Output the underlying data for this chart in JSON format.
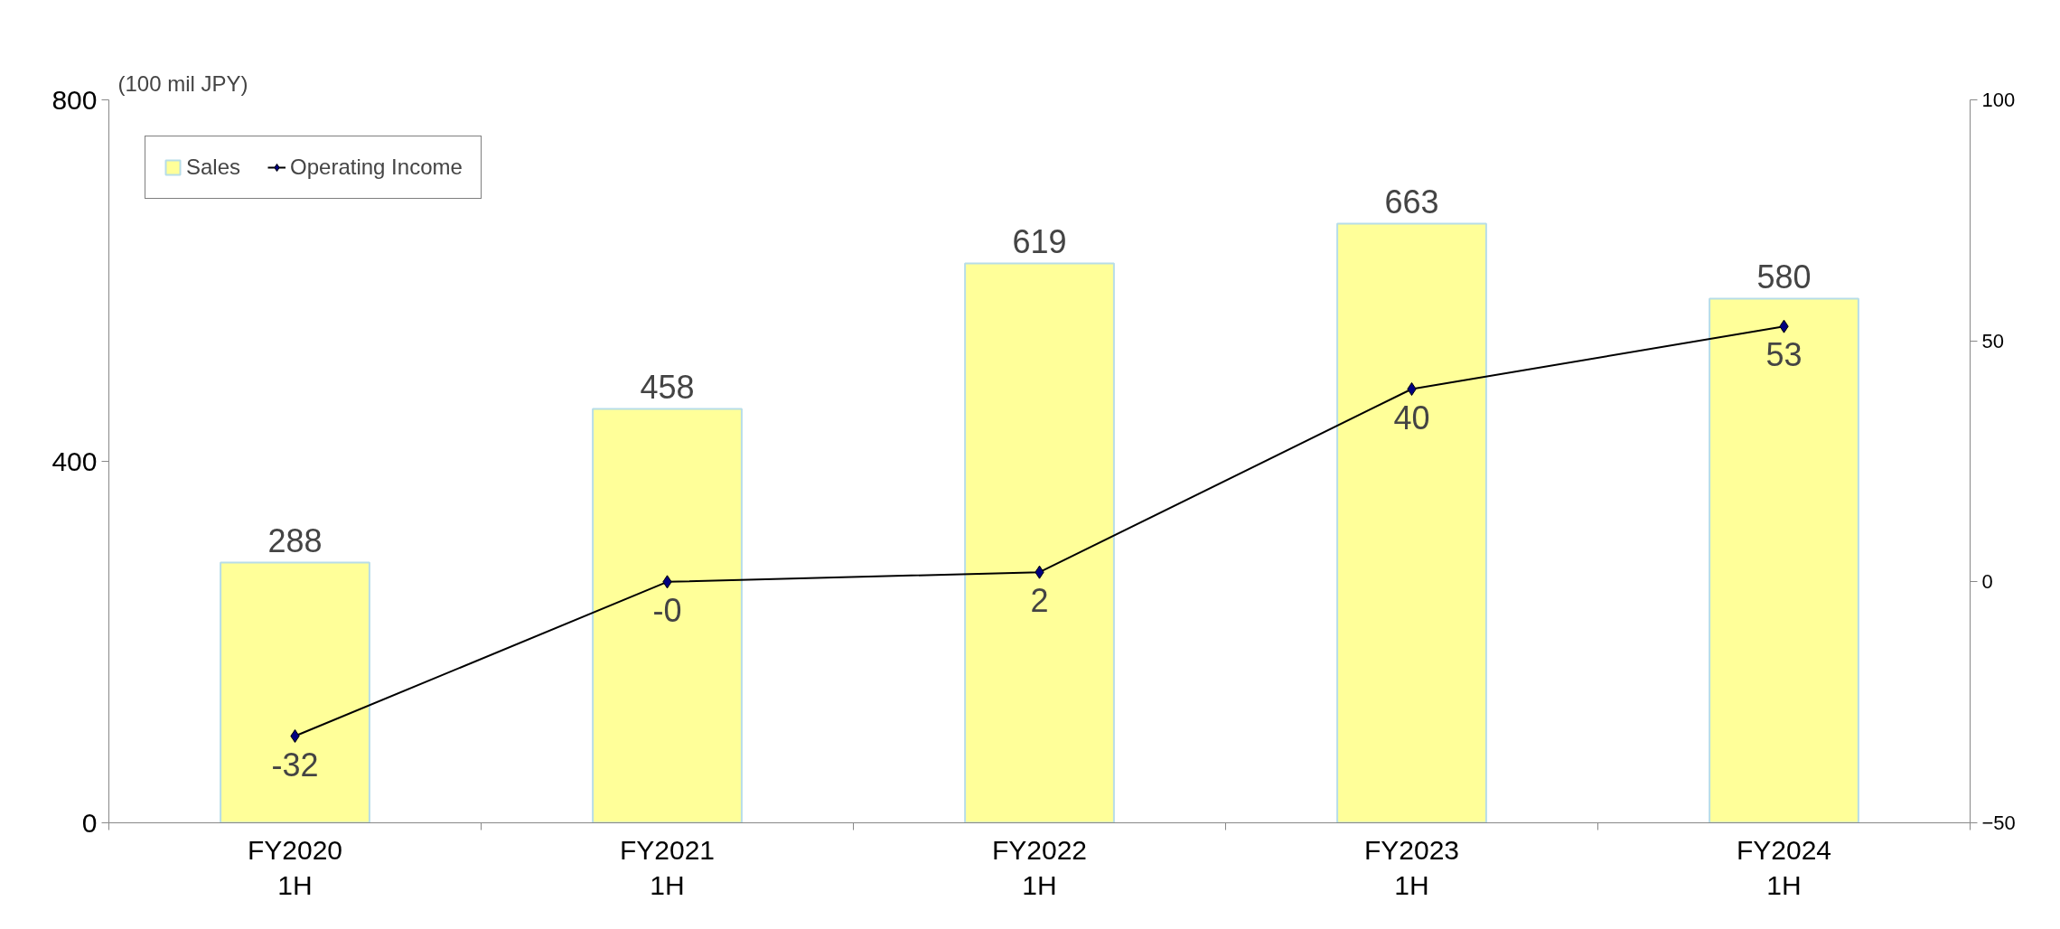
{
  "chart_data": {
    "type": "bar",
    "ylabel": "(100 mil JPY)",
    "categories": [
      "FY2020\n1H",
      "FY2021\n1H",
      "FY2022\n1H",
      "FY2023\n1H",
      "FY2024\n1H"
    ],
    "series": [
      {
        "name": "Sales",
        "color": "#ffff99",
        "values": [
          288,
          458,
          619,
          663,
          580
        ],
        "value_labels": [
          "288",
          "458",
          "619",
          "663",
          "580"
        ]
      },
      {
        "name": "Operating Income",
        "type": "line",
        "axis": "y2",
        "color": "#000000",
        "marker": "diamond",
        "values": [
          -32,
          0,
          2,
          40,
          53
        ],
        "value_labels": [
          "-32",
          "-0",
          "2",
          "40",
          "53"
        ]
      }
    ],
    "ylim": [
      0,
      800
    ],
    "yticks": [
      0,
      400,
      800
    ],
    "y2lim": [
      -50,
      100
    ],
    "y2ticks": [
      -50,
      0,
      50,
      100
    ],
    "grid": false,
    "legend": "top left"
  }
}
